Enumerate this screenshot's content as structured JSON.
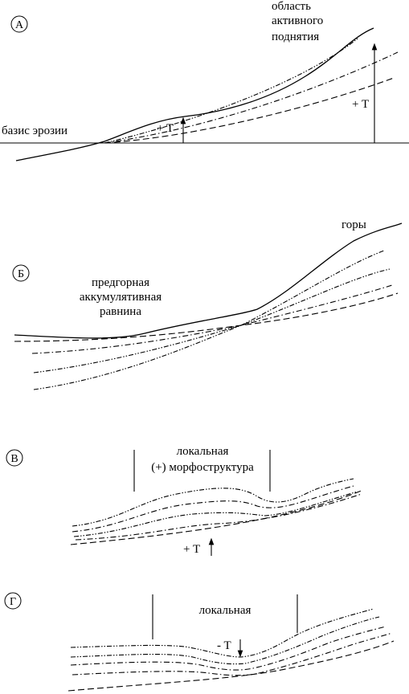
{
  "panels": [
    {
      "label": "А",
      "texts": [
        "область",
        "активного",
        "поднятия",
        "базис эрозии",
        "+ T",
        "+ T"
      ]
    },
    {
      "label": "Б",
      "texts": [
        "горы",
        "предгорная",
        "аккумулятивная",
        "равнина"
      ]
    },
    {
      "label": "В",
      "texts": [
        "локальная",
        "(+) морфоструктура",
        "+ T"
      ]
    },
    {
      "label": "Г",
      "texts": [
        "локальная",
        "- T"
      ]
    }
  ]
}
